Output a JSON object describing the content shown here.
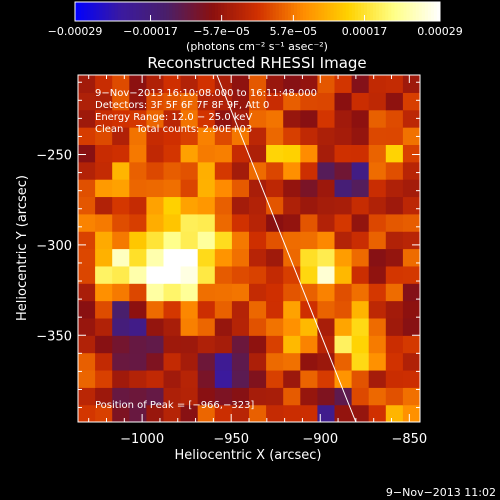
{
  "chart_data": {
    "type": "heatmap",
    "title": "Reconstructed RHESSI Image",
    "xlabel": "Heliocentric X (arcsec)",
    "ylabel": "Heliocentric Y (arcsec)",
    "xlim": [
      -1036,
      -844
    ],
    "ylim": [
      -398,
      -206
    ],
    "xticks": [
      {
        "value": -1000,
        "label": "−1000"
      },
      {
        "value": -950,
        "label": "−950"
      },
      {
        "value": -900,
        "label": "−900"
      },
      {
        "value": -850,
        "label": "−850"
      }
    ],
    "yticks": [
      {
        "value": -250,
        "label": "−250"
      },
      {
        "value": -300,
        "label": "−300"
      },
      {
        "value": -350,
        "label": "−350"
      }
    ],
    "colorbar": {
      "range": [
        -0.00029,
        0.00029
      ],
      "ticks": [
        {
          "value": -0.00029,
          "label": "−0.00029"
        },
        {
          "value": -0.00017,
          "label": "−0.00017"
        },
        {
          "value": -5.7e-05,
          "label": "−5.7e−05"
        },
        {
          "value": 5.7e-05,
          "label": "5.7e−05"
        },
        {
          "value": 0.00017,
          "label": "0.00017"
        },
        {
          "value": 0.00029,
          "label": "0.00029"
        }
      ],
      "unit_label": "(photons cm⁻² s⁻¹ asec⁻²)",
      "colors": [
        "#0000ff",
        "#3a1aa0",
        "#4a1f6a",
        "#8a1010",
        "#d03000",
        "#ff8c00",
        "#ffd200",
        "#ffff88",
        "#ffffff"
      ]
    },
    "annotations": [
      "9−Nov−2013 16:10:08.000 to 16:11:48.000",
      "Detectors: 3F 5F 6F 7F 8F 9F, Att 0",
      "Energy Range: 12.0 − 25.0 keV",
      "Clean    Total counts: 2.90E+03"
    ],
    "peak_label": "Position of Peak = [−966,−323]",
    "peak_position": [
      -966,
      -323
    ],
    "limb_line": {
      "x1": -958,
      "y1": -206,
      "x2": -880,
      "y2": -398
    },
    "blobs": [
      {
        "x": -975,
        "y": -300,
        "amp": 1.0,
        "sx": 16,
        "sy": 20
      },
      {
        "x": -992,
        "y": -318,
        "amp": 0.8,
        "sx": 12,
        "sy": 12
      },
      {
        "x": -1018,
        "y": -308,
        "amp": 0.6,
        "sx": 8,
        "sy": 14
      },
      {
        "x": -970,
        "y": -248,
        "amp": 0.35,
        "sx": 14,
        "sy": 10
      },
      {
        "x": -900,
        "y": -313,
        "amp": 0.8,
        "sx": 8,
        "sy": 10
      },
      {
        "x": -880,
        "y": -355,
        "amp": 0.7,
        "sx": 8,
        "sy": 14
      },
      {
        "x": -915,
        "y": -345,
        "amp": 0.55,
        "sx": 8,
        "sy": 10
      },
      {
        "x": -920,
        "y": -250,
        "amp": 0.7,
        "sx": 8,
        "sy": 8
      },
      {
        "x": -862,
        "y": -250,
        "amp": 0.45,
        "sx": 6,
        "sy": 8
      },
      {
        "x": -857,
        "y": -390,
        "amp": 0.5,
        "sx": 6,
        "sy": 6
      },
      {
        "x": -1010,
        "y": -265,
        "amp": 0.3,
        "sx": 10,
        "sy": 8
      },
      {
        "x": -1000,
        "y": -390,
        "amp": -0.4,
        "sx": 10,
        "sy": 8
      },
      {
        "x": -1005,
        "y": -345,
        "amp": -0.5,
        "sx": 12,
        "sy": 14
      },
      {
        "x": -955,
        "y": -370,
        "amp": -0.6,
        "sx": 12,
        "sy": 10
      },
      {
        "x": -885,
        "y": -265,
        "amp": -0.5,
        "sx": 10,
        "sy": 10
      },
      {
        "x": -895,
        "y": -390,
        "amp": -0.4,
        "sx": 8,
        "sy": 8
      }
    ]
  },
  "footer": {
    "timestamp": "9−Nov−2013 11:02"
  }
}
